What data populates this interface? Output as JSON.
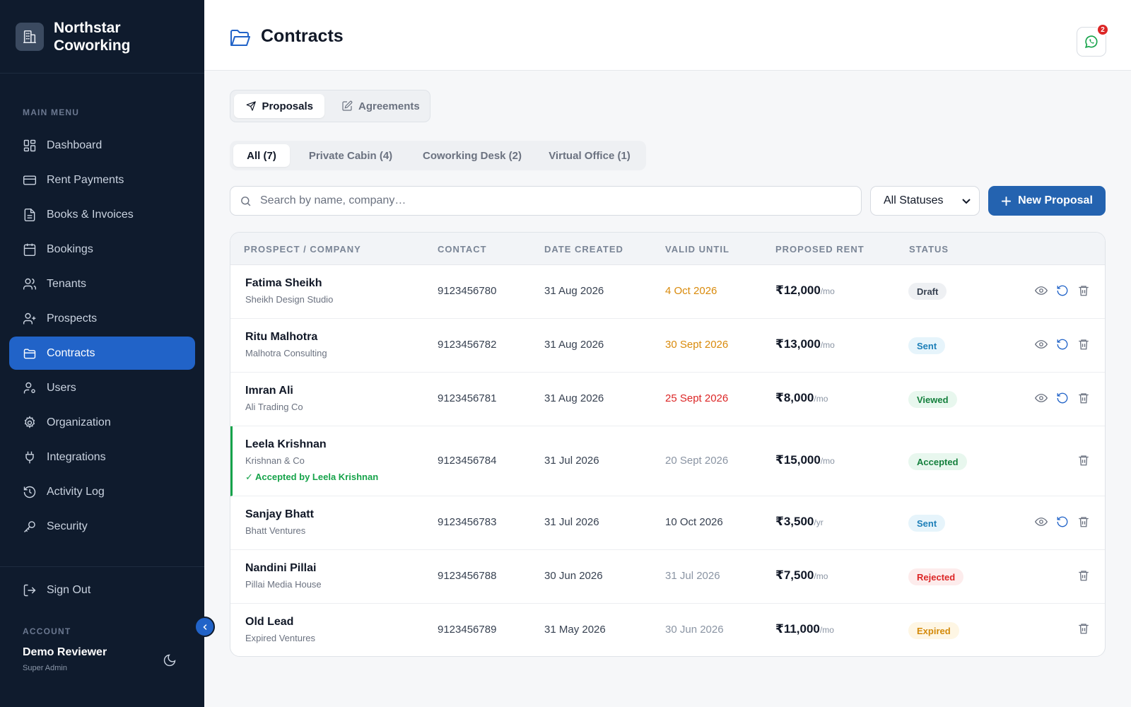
{
  "brand": {
    "name_line1": "Northstar",
    "name_line2": "Coworking"
  },
  "sidebar": {
    "menu_heading": "MAIN MENU",
    "items": [
      {
        "label": "Dashboard",
        "icon": "dashboard-icon"
      },
      {
        "label": "Rent Payments",
        "icon": "credit-card-icon"
      },
      {
        "label": "Books & Invoices",
        "icon": "document-icon"
      },
      {
        "label": "Bookings",
        "icon": "calendar-icon"
      },
      {
        "label": "Tenants",
        "icon": "users-icon"
      },
      {
        "label": "Prospects",
        "icon": "user-plus-icon"
      },
      {
        "label": "Contracts",
        "icon": "folder-icon",
        "active": true
      },
      {
        "label": "Users",
        "icon": "user-gear-icon"
      },
      {
        "label": "Organization",
        "icon": "gear-icon"
      },
      {
        "label": "Integrations",
        "icon": "plug-icon"
      },
      {
        "label": "Activity Log",
        "icon": "history-icon"
      },
      {
        "label": "Security",
        "icon": "key-icon"
      }
    ],
    "sign_out": "Sign Out",
    "account_heading": "ACCOUNT",
    "account_name": "Demo Reviewer",
    "account_role": "Super Admin"
  },
  "header": {
    "title": "Contracts",
    "notification_count": "2"
  },
  "segments": {
    "proposals": "Proposals",
    "agreements": "Agreements"
  },
  "filters": [
    "All (7)",
    "Private Cabin (4)",
    "Coworking Desk (2)",
    "Virtual Office (1)"
  ],
  "search": {
    "placeholder": "Search by name, company…",
    "value": ""
  },
  "status_filter": {
    "selected": "All Statuses"
  },
  "new_button": "New Proposal",
  "table": {
    "headers": [
      "PROSPECT / COMPANY",
      "CONTACT",
      "DATE CREATED",
      "VALID UNTIL",
      "PROPOSED RENT",
      "STATUS"
    ],
    "rows": [
      {
        "name": "Fatima Sheikh",
        "company": "Sheikh Design Studio",
        "contact": "9123456780",
        "created": "31 Aug 2026",
        "valid_until": "4 Oct 2026",
        "valid_color": "#d98a0b",
        "rent": "₹12,000",
        "unit": "/mo",
        "status": "Draft"
      },
      {
        "name": "Ritu Malhotra",
        "company": "Malhotra Consulting",
        "contact": "9123456782",
        "created": "31 Aug 2026",
        "valid_until": "30 Sept 2026",
        "valid_color": "#d98a0b",
        "rent": "₹13,000",
        "unit": "/mo",
        "status": "Sent"
      },
      {
        "name": "Imran Ali",
        "company": "Ali Trading Co",
        "contact": "9123456781",
        "created": "31 Aug 2026",
        "valid_until": "25 Sept 2026",
        "valid_color": "#dc2626",
        "rent": "₹8,000",
        "unit": "/mo",
        "status": "Viewed"
      },
      {
        "name": "Leela Krishnan",
        "company": "Krishnan & Co",
        "accepted_note": "✓ Accepted by Leela Krishnan",
        "contact": "9123456784",
        "created": "31 Jul 2026",
        "valid_until": "20 Sept 2026",
        "valid_color": "#8a94a3",
        "rent": "₹15,000",
        "unit": "/mo",
        "status": "Accepted"
      },
      {
        "name": "Sanjay Bhatt",
        "company": "Bhatt Ventures",
        "contact": "9123456783",
        "created": "31 Jul 2026",
        "valid_until": "10 Oct 2026",
        "valid_color": "#374151",
        "rent": "₹3,500",
        "unit": "/yr",
        "status": "Sent"
      },
      {
        "name": "Nandini Pillai",
        "company": "Pillai Media House",
        "contact": "9123456788",
        "created": "30 Jun 2026",
        "valid_until": "31 Jul 2026",
        "valid_color": "#8a94a3",
        "rent": "₹7,500",
        "unit": "/mo",
        "status": "Rejected"
      },
      {
        "name": "Old Lead",
        "company": "Expired Ventures",
        "contact": "9123456789",
        "created": "31 May 2026",
        "valid_until": "30 Jun 2026",
        "valid_color": "#8a94a3",
        "rent": "₹11,000",
        "unit": "/mo",
        "status": "Expired"
      }
    ]
  },
  "colors": {
    "sidebar_bg": "#0f1b2d",
    "accent": "#2163c8",
    "primary_button": "#2463b0",
    "success": "#16a34a",
    "warning": "#d98a0b",
    "danger": "#dc2626"
  }
}
